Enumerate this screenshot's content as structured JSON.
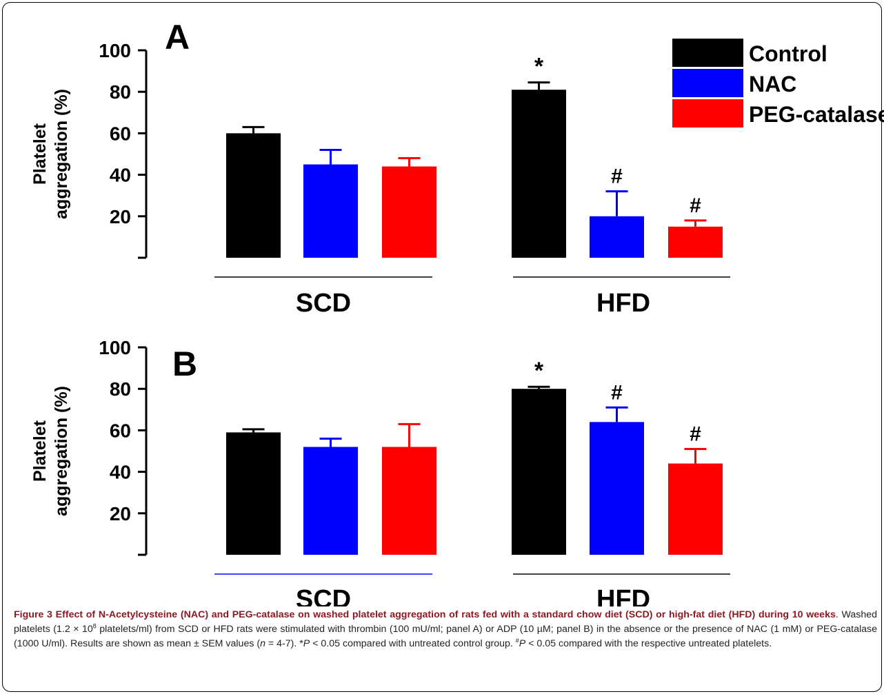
{
  "chart_data": [
    {
      "panel": "A",
      "type": "bar",
      "ylabel": [
        "Platelet",
        "aggregation (%)"
      ],
      "ylim": [
        0,
        100
      ],
      "yticks": [
        20,
        40,
        60,
        80,
        100
      ],
      "groups": [
        "SCD",
        "HFD"
      ],
      "series": [
        {
          "name": "Control",
          "color": "#000000",
          "values": [
            60,
            81
          ],
          "errors": [
            3,
            3.5
          ]
        },
        {
          "name": "NAC",
          "color": "#0000ff",
          "values": [
            45,
            20
          ],
          "errors": [
            7,
            12
          ]
        },
        {
          "name": "PEG-catalase",
          "color": "#ff0000",
          "values": [
            44,
            15
          ],
          "errors": [
            4,
            3
          ]
        }
      ],
      "annotations": [
        {
          "group": "HFD",
          "series": "Control",
          "text": "*"
        },
        {
          "group": "HFD",
          "series": "NAC",
          "text": "#"
        },
        {
          "group": "HFD",
          "series": "PEG-catalase",
          "text": "#"
        }
      ],
      "legend": "top-right"
    },
    {
      "panel": "B",
      "type": "bar",
      "ylabel": [
        "Platelet",
        "aggregation (%)"
      ],
      "ylim": [
        0,
        100
      ],
      "yticks": [
        20,
        40,
        60,
        80,
        100
      ],
      "groups": [
        "SCD",
        "HFD"
      ],
      "series": [
        {
          "name": "Control",
          "color": "#000000",
          "values": [
            59,
            80
          ],
          "errors": [
            1.5,
            1
          ]
        },
        {
          "name": "NAC",
          "color": "#0000ff",
          "values": [
            52,
            64
          ],
          "errors": [
            4,
            7
          ]
        },
        {
          "name": "PEG-catalase",
          "color": "#ff0000",
          "values": [
            52,
            44
          ],
          "errors": [
            11,
            7
          ]
        }
      ],
      "annotations": [
        {
          "group": "HFD",
          "series": "Control",
          "text": "*"
        },
        {
          "group": "HFD",
          "series": "NAC",
          "text": "#"
        },
        {
          "group": "HFD",
          "series": "PEG-catalase",
          "text": "#"
        }
      ]
    }
  ],
  "caption": {
    "label": "Figure 3",
    "title": "Effect of N-Acetylcysteine (NAC) and PEG-catalase on washed platelet aggregation of rats fed with a standard chow diet (SCD) or high-fat diet (HFD) during 10 weeks",
    "body_1": ". Washed platelets (1.2 × 10",
    "body_1_sup": "8",
    "body_2": " platelets/ml) from SCD or HFD rats were stimulated with thrombin (100 mU/ml; panel A) or ADP (10 µM; panel B) in the absence or the presence of NAC (1 mM) or PEG-catalase (1000 U/ml). Results are shown as mean ± SEM values (",
    "n_var": "n",
    "body_3": " = 4-7). *",
    "p_var_1": "P",
    "body_4": " < 0.05 compared with untreated control group. ",
    "hash_sup": "#",
    "p_var_2": "P",
    "body_5": " < 0.05 compared with the respective untreated platelets."
  }
}
